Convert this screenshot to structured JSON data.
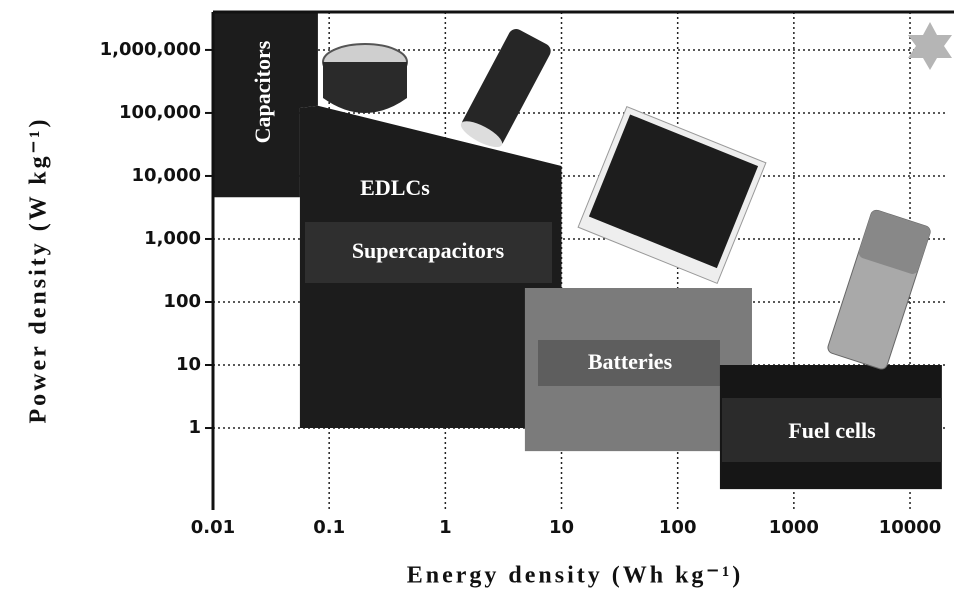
{
  "chart_data": {
    "type": "ragone",
    "x_label": "Energy density (Wh kg⁻¹)",
    "y_label": "Power density (W kg⁻¹)",
    "log_x": true,
    "log_y": true,
    "grid": true,
    "xlim": [
      0.01,
      20000
    ],
    "ylim": [
      0.05,
      4000000
    ],
    "xticks": [
      0.01,
      0.1,
      1,
      10,
      100,
      1000,
      10000
    ],
    "yticks": [
      1,
      10,
      100,
      {
        "value": 1000,
        "label": "1,000"
      },
      {
        "value": 10000,
        "label": "10,000"
      },
      {
        "value": 100000,
        "label": "100,000"
      },
      {
        "value": 1000000,
        "label": "1,000,000"
      }
    ],
    "series": [
      {
        "labels": [
          "Capacitors"
        ],
        "color": "#1c1c1c",
        "x": [
          0.01,
          0.08,
          0.08,
          0.056,
          0.056,
          0.01
        ],
        "values": [
          4000000,
          4000000,
          130000,
          120000,
          4600,
          4600
        ]
      },
      {
        "labels": [
          "EDLCs",
          "Supercapacitors"
        ],
        "color": "#1c1c1c",
        "x": [
          0.056,
          0.056,
          0.08,
          10,
          10
        ],
        "values": [
          1,
          120000,
          130000,
          14400,
          1
        ]
      },
      {
        "labels": [
          "Batteries"
        ],
        "color": "#7b7b7b",
        "x": [
          4.84,
          436,
          436,
          4.84
        ],
        "values": [
          167,
          167,
          0.43,
          0.43
        ]
      },
      {
        "labels": [
          "Fuel cells"
        ],
        "color": "#161616",
        "x": [
          231,
          18800,
          18800,
          231
        ],
        "values": [
          10,
          10,
          0.107,
          0.107
        ]
      }
    ]
  }
}
